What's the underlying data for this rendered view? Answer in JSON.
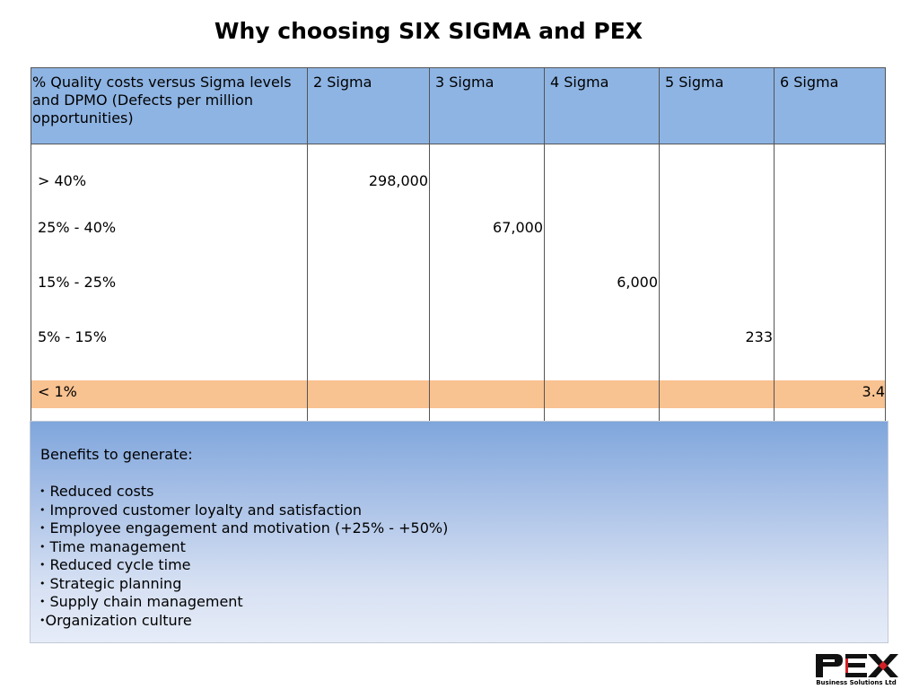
{
  "title": "Why choosing SIX SIGMA and PEX",
  "table": {
    "header": {
      "label": "% Quality costs versus Sigma levels and DPMO (Defects per million opportunities)",
      "columns": [
        "2 Sigma",
        "3 Sigma",
        "4 Sigma",
        "5 Sigma",
        "6 Sigma"
      ]
    },
    "rows": [
      {
        "label": "> 40%",
        "value": "298,000",
        "column": "2 Sigma"
      },
      {
        "label": "25% - 40%",
        "value": "67,000",
        "column": "3 Sigma"
      },
      {
        "label": "15% - 25%",
        "value": "6,000",
        "column": "4 Sigma"
      },
      {
        "label": "5% - 15%",
        "value": "233",
        "column": "5 Sigma"
      },
      {
        "label": "< 1%",
        "value": "3.4",
        "column": "6 Sigma"
      }
    ],
    "highlight_color": "#f8c291",
    "header_color": "#8eb4e3"
  },
  "benefits": {
    "heading": "Benefits to generate:",
    "items": [
      "Reduced costs",
      "Improved customer loyalty and satisfaction",
      "Employee engagement and motivation (+25% - +50%)",
      "Time management",
      "Reduced cycle time",
      "Strategic planning",
      "Supply chain management",
      "Organization culture"
    ]
  },
  "logo": {
    "text": "PEX",
    "subtitle": "Business Solutions Ltd"
  }
}
